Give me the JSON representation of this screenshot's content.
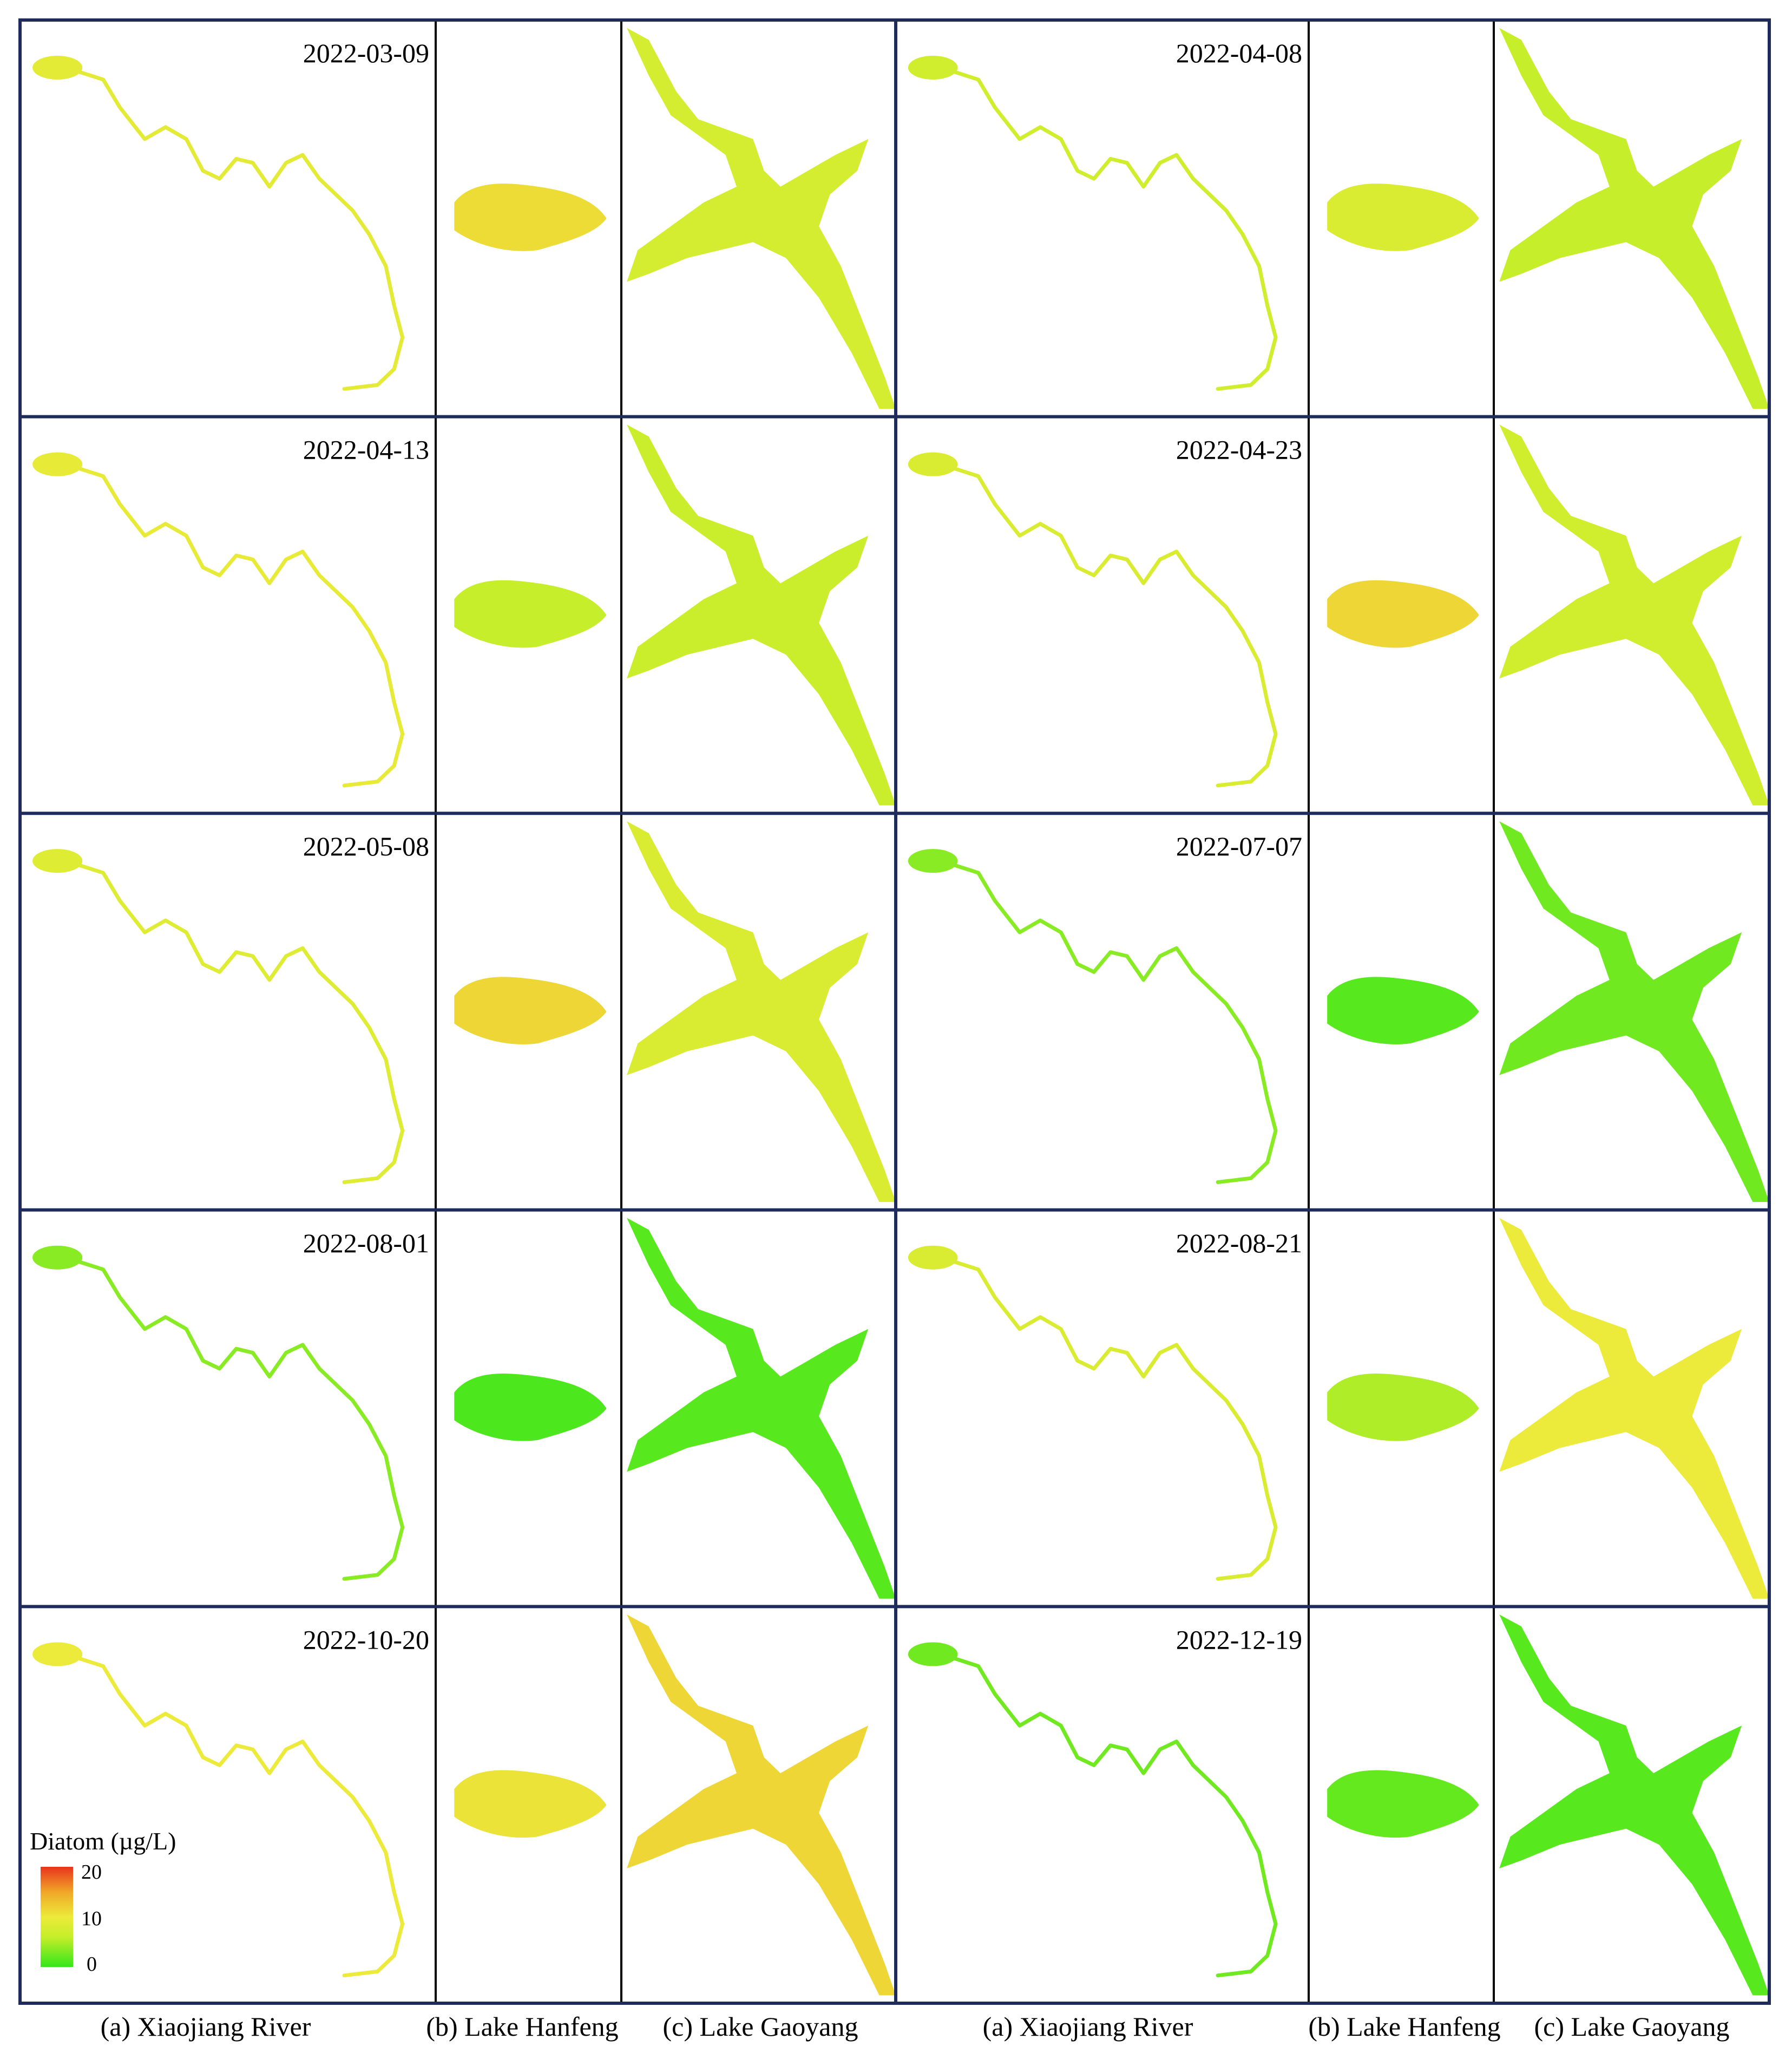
{
  "figure": {
    "colors": {
      "frame": "#1f2b5a",
      "divider": "#000000",
      "green": "#33e61a",
      "yellow_green": "#c6ee2a",
      "yellow": "#ecea3a",
      "orange": "#f0a628",
      "red": "#e8341c"
    },
    "rows": [
      {
        "left": {
          "date": "2022-03-09",
          "river": 9.0,
          "hanfeng": 11.0,
          "gaoyang": 7.5
        },
        "right": {
          "date": "2022-04-08",
          "river": 7.0,
          "hanfeng": 8.0,
          "gaoyang": 6.0
        }
      },
      {
        "left": {
          "date": "2022-04-13",
          "river": 9.5,
          "hanfeng": 6.0,
          "gaoyang": 6.5
        },
        "right": {
          "date": "2022-04-23",
          "river": 8.0,
          "hanfeng": 11.5,
          "gaoyang": 7.0
        }
      },
      {
        "left": {
          "date": "2022-05-08",
          "river": 8.5,
          "hanfeng": 11.5,
          "gaoyang": 8.0
        },
        "right": {
          "date": "2022-07-07",
          "river": 3.5,
          "hanfeng": 1.5,
          "gaoyang": 2.5
        }
      },
      {
        "left": {
          "date": "2022-08-01",
          "river": 3.5,
          "hanfeng": 1.0,
          "gaoyang": 1.5
        },
        "right": {
          "date": "2022-08-21",
          "river": 8.0,
          "hanfeng": 5.0,
          "gaoyang": 10.0
        }
      },
      {
        "left": {
          "date": "2022-10-20",
          "river": 10.0,
          "hanfeng": 10.5,
          "gaoyang": 11.5
        },
        "right": {
          "date": "2022-12-19",
          "river": 2.5,
          "hanfeng": 2.0,
          "gaoyang": 1.5
        }
      }
    ],
    "captions": [
      "(a) Xiaojiang River",
      "(b) Lake Hanfeng",
      "(c) Lake Gaoyang",
      "(a) Xiaojiang River",
      "(b) Lake Hanfeng",
      "(c) Lake Gaoyang"
    ],
    "legend": {
      "title": "Diatom (µg/L)",
      "max_label": "20",
      "mid_label": "10",
      "min_label": "0",
      "min": 0,
      "max": 20
    }
  }
}
